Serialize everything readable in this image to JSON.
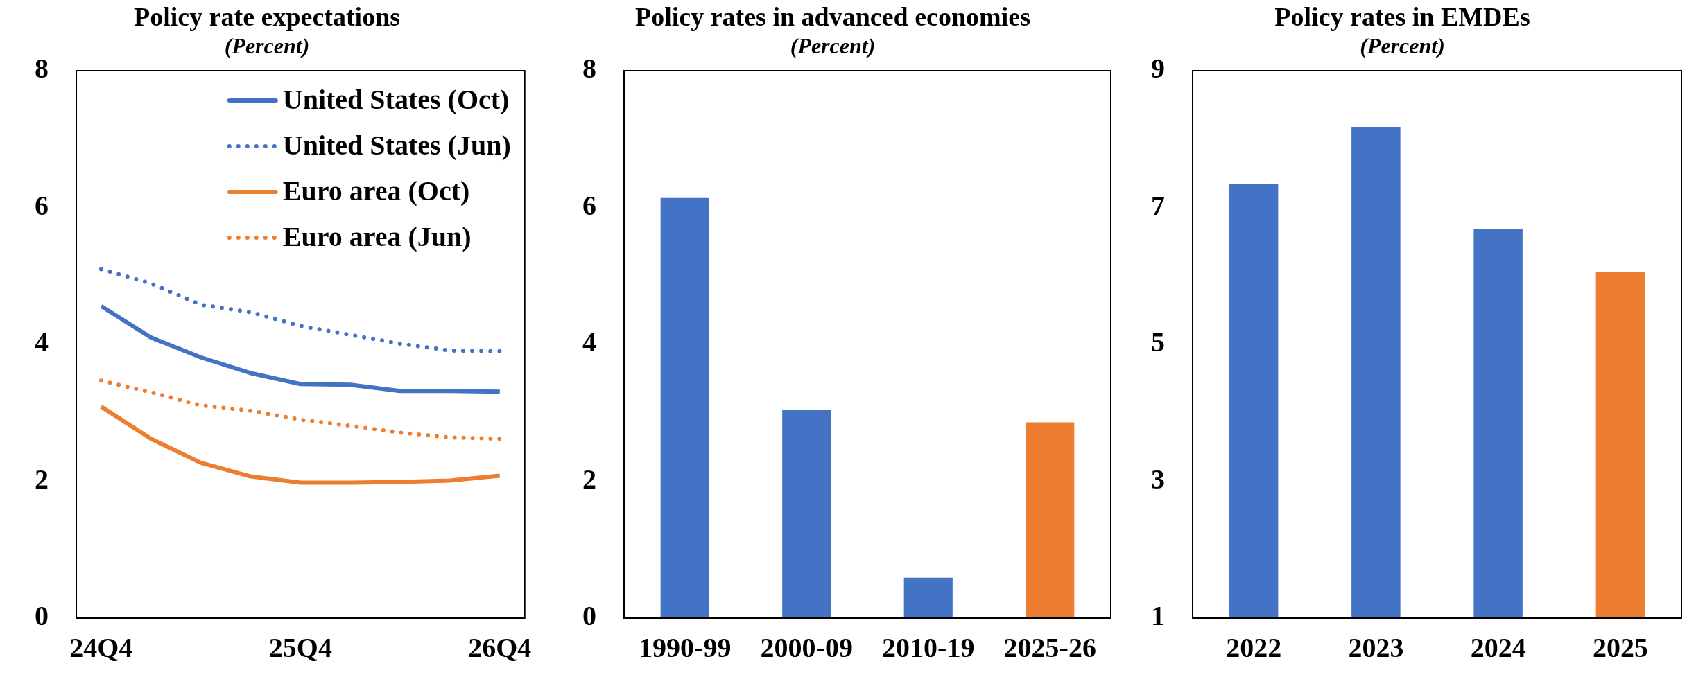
{
  "chart_data": [
    {
      "type": "line",
      "title": "Policy rate expectations",
      "subtitle": "(Percent)",
      "categories": [
        "24Q4",
        null,
        null,
        null,
        "25Q4",
        null,
        null,
        null,
        "26Q4"
      ],
      "series": [
        {
          "name": "United States (Oct)",
          "color": "#4472c4",
          "line_style": "solid",
          "values": [
            4.56,
            4.1,
            3.81,
            3.58,
            3.42,
            3.41,
            3.32,
            3.32,
            3.31
          ]
        },
        {
          "name": "United States (Jun)",
          "color": "#4472c4",
          "line_style": "dotted",
          "values": [
            5.1,
            4.89,
            4.58,
            4.47,
            4.27,
            4.14,
            4.01,
            3.91,
            3.9
          ]
        },
        {
          "name": "Euro area (Oct)",
          "color": "#ed7d31",
          "line_style": "solid",
          "values": [
            3.09,
            2.62,
            2.27,
            2.07,
            1.98,
            1.98,
            1.99,
            2.01,
            2.08
          ]
        },
        {
          "name": "Euro area (Jun)",
          "color": "#ed7d31",
          "line_style": "dotted",
          "values": [
            3.47,
            3.3,
            3.11,
            3.03,
            2.9,
            2.81,
            2.71,
            2.64,
            2.62
          ]
        }
      ],
      "ylim": [
        0,
        8
      ],
      "yticks": [
        0,
        2,
        4,
        6,
        8
      ],
      "legend": "top right"
    },
    {
      "type": "bar",
      "title": "Policy rates in advanced economies",
      "subtitle": "(Percent)",
      "categories": [
        "1990-99",
        "2000-09",
        "2010-19",
        "2025-26"
      ],
      "values": [
        6.14,
        3.04,
        0.59,
        2.86
      ],
      "colors": [
        "#4472c4",
        "#4472c4",
        "#4472c4",
        "#ed7d31"
      ],
      "ylim": [
        0,
        8
      ],
      "yticks": [
        0,
        2,
        4,
        6,
        8
      ]
    },
    {
      "type": "bar",
      "title": "Policy rates in EMDEs",
      "subtitle": "(Percent)",
      "categories": [
        "2022",
        "2023",
        "2024",
        "2025"
      ],
      "values": [
        7.35,
        8.18,
        6.69,
        6.06
      ],
      "colors": [
        "#4472c4",
        "#4472c4",
        "#4472c4",
        "#ed7d31"
      ],
      "ylim": [
        1,
        9
      ],
      "yticks": [
        1,
        3,
        5,
        7,
        9
      ]
    }
  ]
}
